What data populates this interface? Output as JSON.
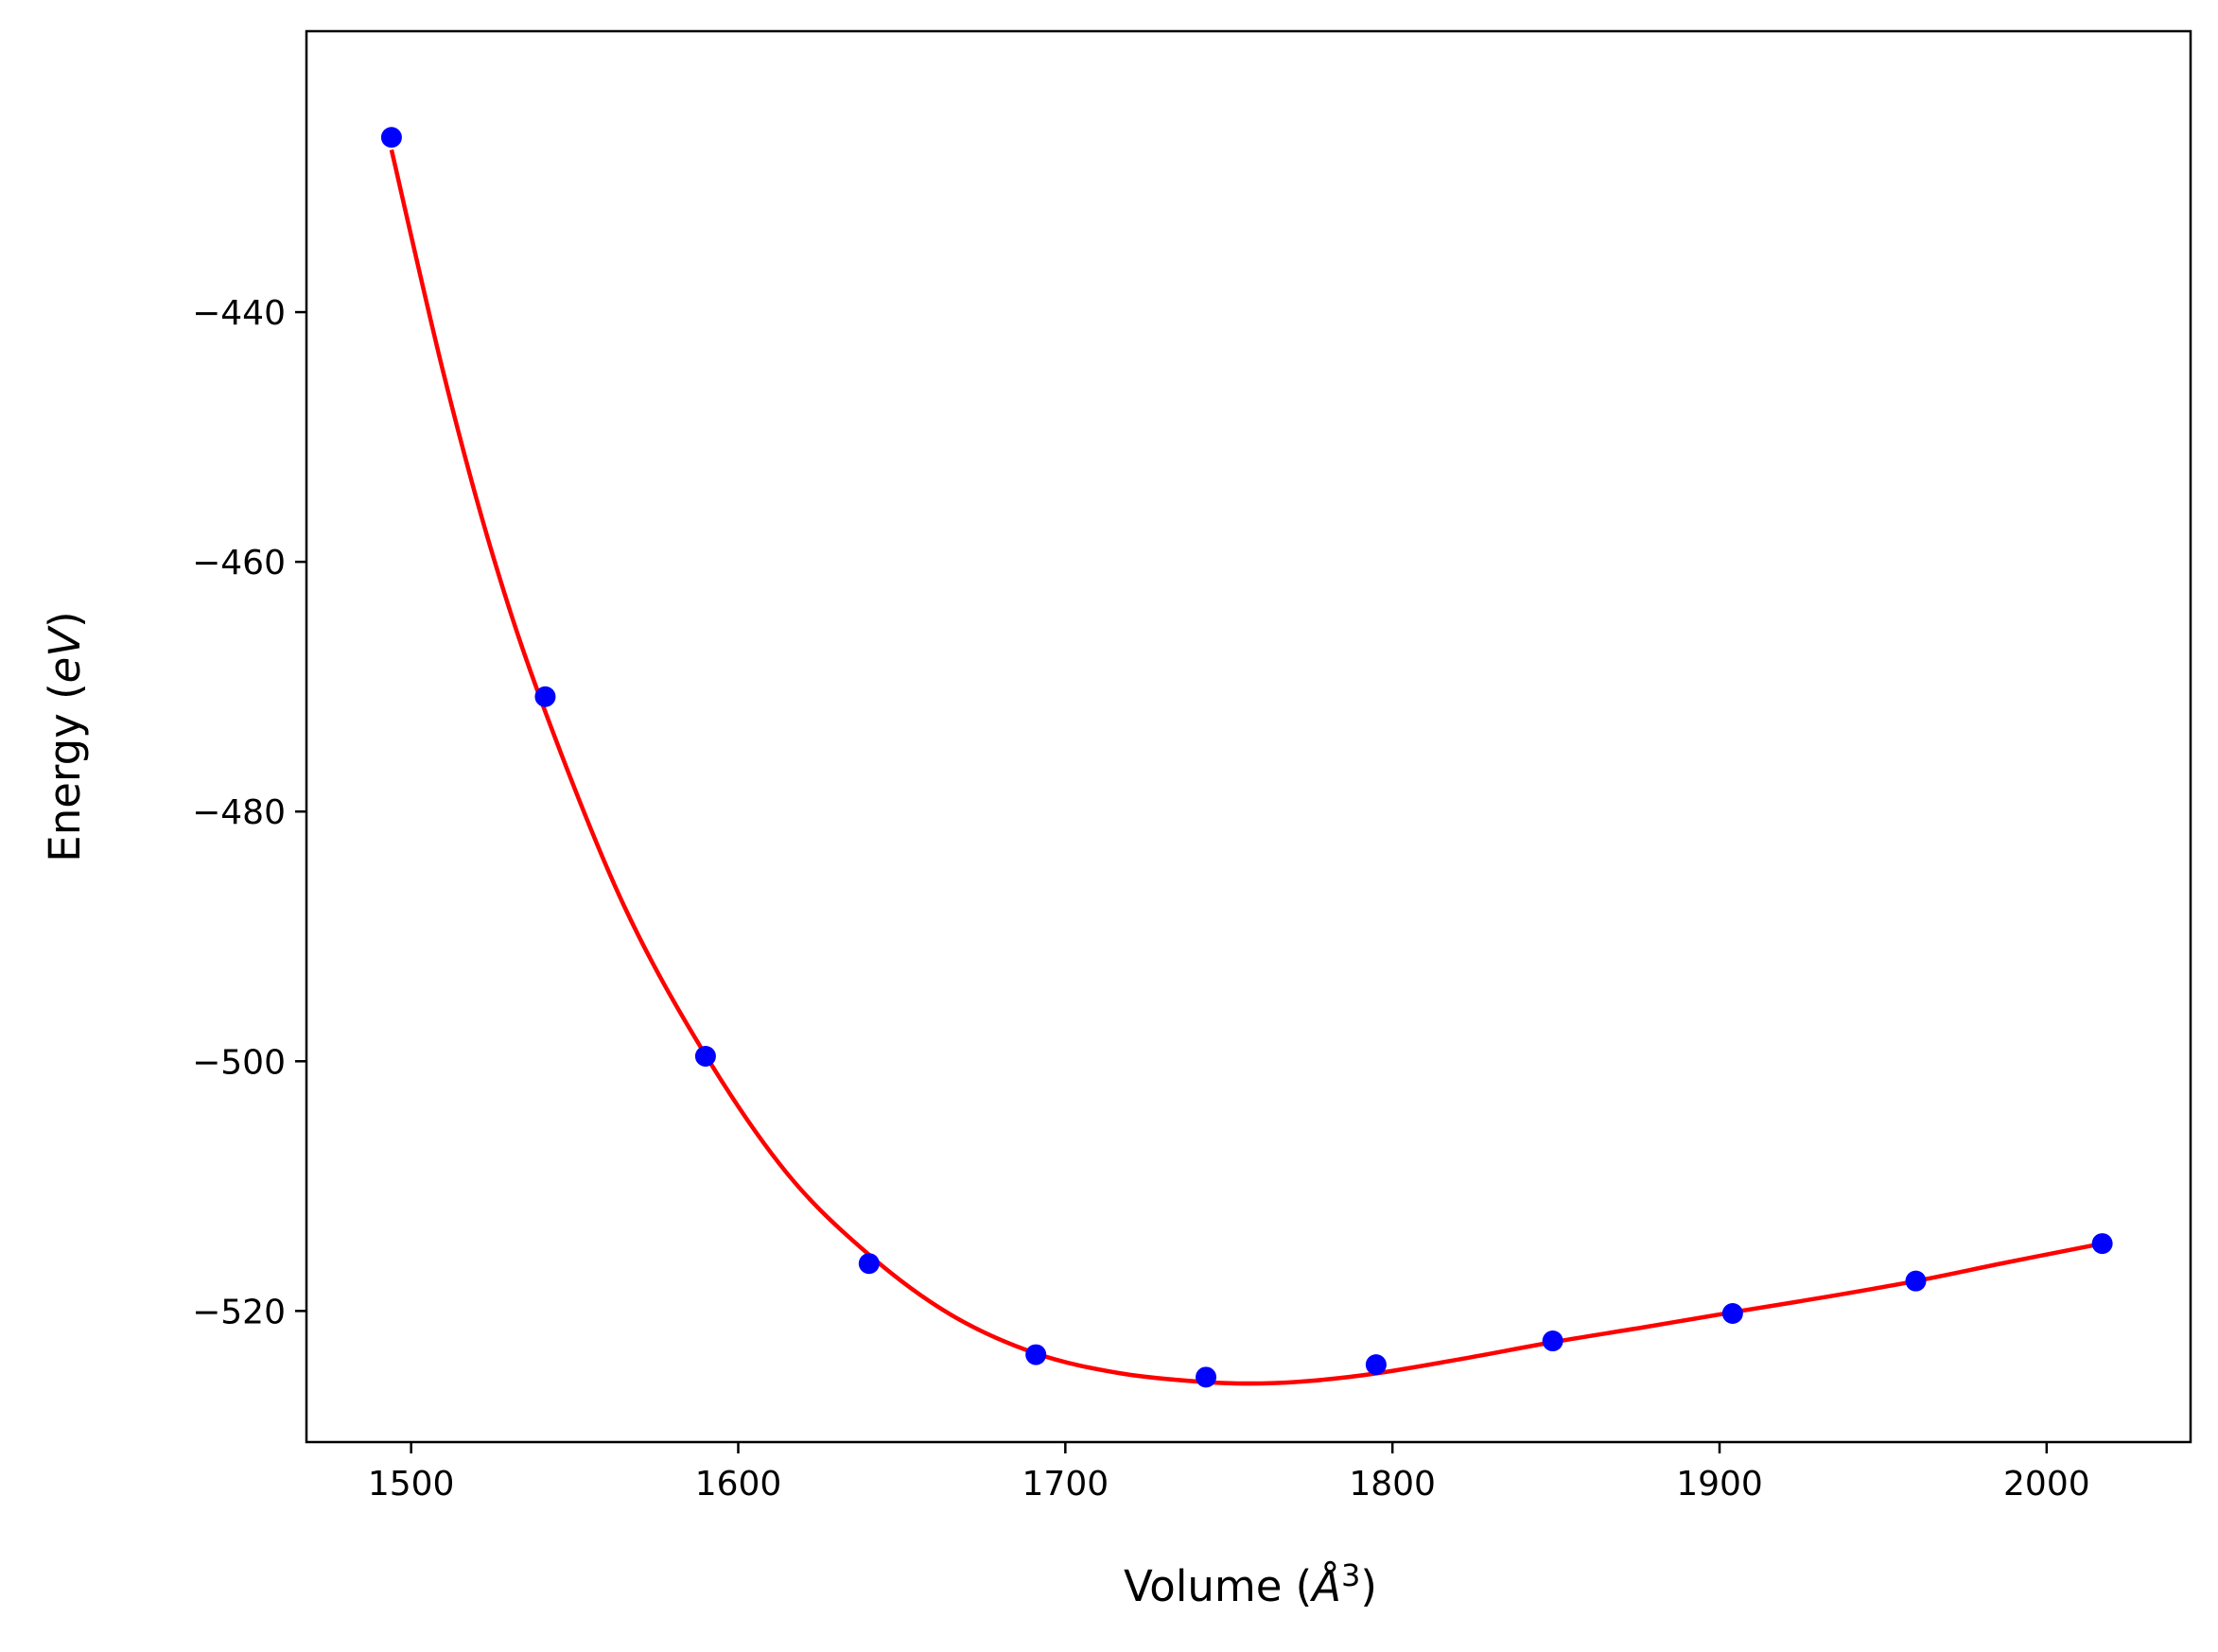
{
  "chart_data": {
    "type": "scatter",
    "xlabel": {
      "prefix": "Volume (",
      "unit": "Å",
      "power": "3",
      "suffix": ")"
    },
    "ylabel": {
      "prefix": "Energy (",
      "unit": "eV",
      "suffix": ")"
    },
    "xlim": [
      1468,
      2044
    ],
    "ylim": [
      -530.5,
      -417.5
    ],
    "xticks": [
      1500,
      1600,
      1700,
      1800,
      1900,
      2000
    ],
    "yticks": [
      -440,
      -460,
      -480,
      -500,
      -520
    ],
    "ytick_labels": [
      "−440",
      "−460",
      "−480",
      "−500",
      "−520"
    ],
    "grid": false,
    "series": [
      {
        "kind": "points",
        "color": "#0000ff",
        "x": [
          1494,
          1541,
          1590,
          1640,
          1691,
          1743,
          1795,
          1849,
          1904,
          1960,
          2017
        ],
        "y": [
          -426.0,
          -470.8,
          -499.6,
          -516.2,
          -523.5,
          -525.3,
          -524.3,
          -522.4,
          -520.2,
          -517.6,
          -514.6
        ]
      },
      {
        "kind": "fit-curve",
        "color": "#ff0000",
        "x": [
          1494,
          1510,
          1525,
          1541,
          1565,
          1590,
          1615,
          1640,
          1665,
          1691,
          1717,
          1743,
          1760,
          1775,
          1795,
          1822,
          1849,
          1877,
          1904,
          1932,
          1960,
          1988,
          2017
        ],
        "y": [
          -427.0,
          -445.0,
          -459.5,
          -472.0,
          -487.5,
          -499.5,
          -509.0,
          -515.5,
          -520.3,
          -523.4,
          -525.0,
          -525.7,
          -525.8,
          -525.6,
          -525.0,
          -523.8,
          -522.5,
          -521.3,
          -520.1,
          -518.9,
          -517.6,
          -516.1,
          -514.6
        ]
      }
    ]
  }
}
